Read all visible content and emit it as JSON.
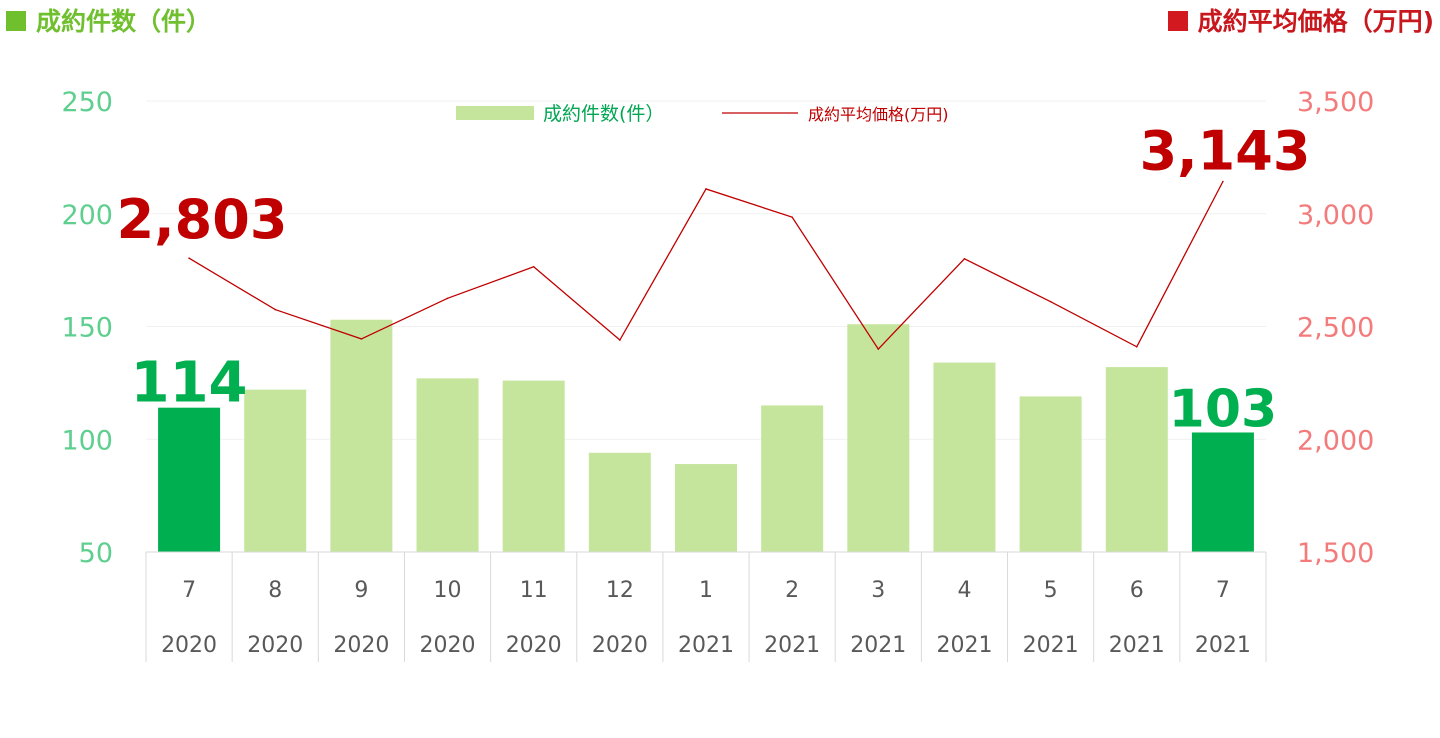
{
  "header": {
    "left_title": "成約件数（件）",
    "right_title": "成約平均価格（万円)",
    "left_color": "#6fbf2f",
    "right_color": "#c8171d"
  },
  "chart_data": {
    "type": "bar",
    "categories": [
      "7",
      "8",
      "9",
      "10",
      "11",
      "12",
      "1",
      "2",
      "3",
      "4",
      "5",
      "6",
      "7"
    ],
    "years": [
      "2020",
      "2020",
      "2020",
      "2020",
      "2020",
      "2020",
      "2021",
      "2021",
      "2021",
      "2021",
      "2021",
      "2021",
      "2021"
    ],
    "series": [
      {
        "name": "成約件数(件）",
        "type": "bar",
        "axis": "left",
        "values": [
          114,
          122,
          153,
          127,
          126,
          94,
          89,
          115,
          151,
          134,
          119,
          132,
          103
        ],
        "color": "#c5e59c",
        "highlight_color": "#00b050",
        "highlight_indices": [
          0,
          12
        ]
      },
      {
        "name": "成約平均価格(万円)",
        "type": "line",
        "axis": "right",
        "values": [
          2803,
          2575,
          2445,
          2625,
          2765,
          2440,
          3110,
          2985,
          2400,
          2800,
          2610,
          2410,
          3143
        ],
        "color": "#c00000"
      }
    ],
    "y_left": {
      "min": 50,
      "max": 250,
      "ticks": [
        "250",
        "200",
        "150",
        "100",
        "50"
      ],
      "color": "#5fcf90"
    },
    "y_right": {
      "min": 1500,
      "max": 3500,
      "ticks": [
        "3,500",
        "3,000",
        "2,500",
        "2,000",
        "1,500"
      ],
      "color": "#f37b7b"
    },
    "annotations": {
      "bar_first": "114",
      "bar_last": "103",
      "line_first": "2,803",
      "line_last": "3,143",
      "bar_label_color": "#00b050",
      "line_label_color": "#c00000"
    },
    "legend_position": "top-center",
    "grid": true
  }
}
